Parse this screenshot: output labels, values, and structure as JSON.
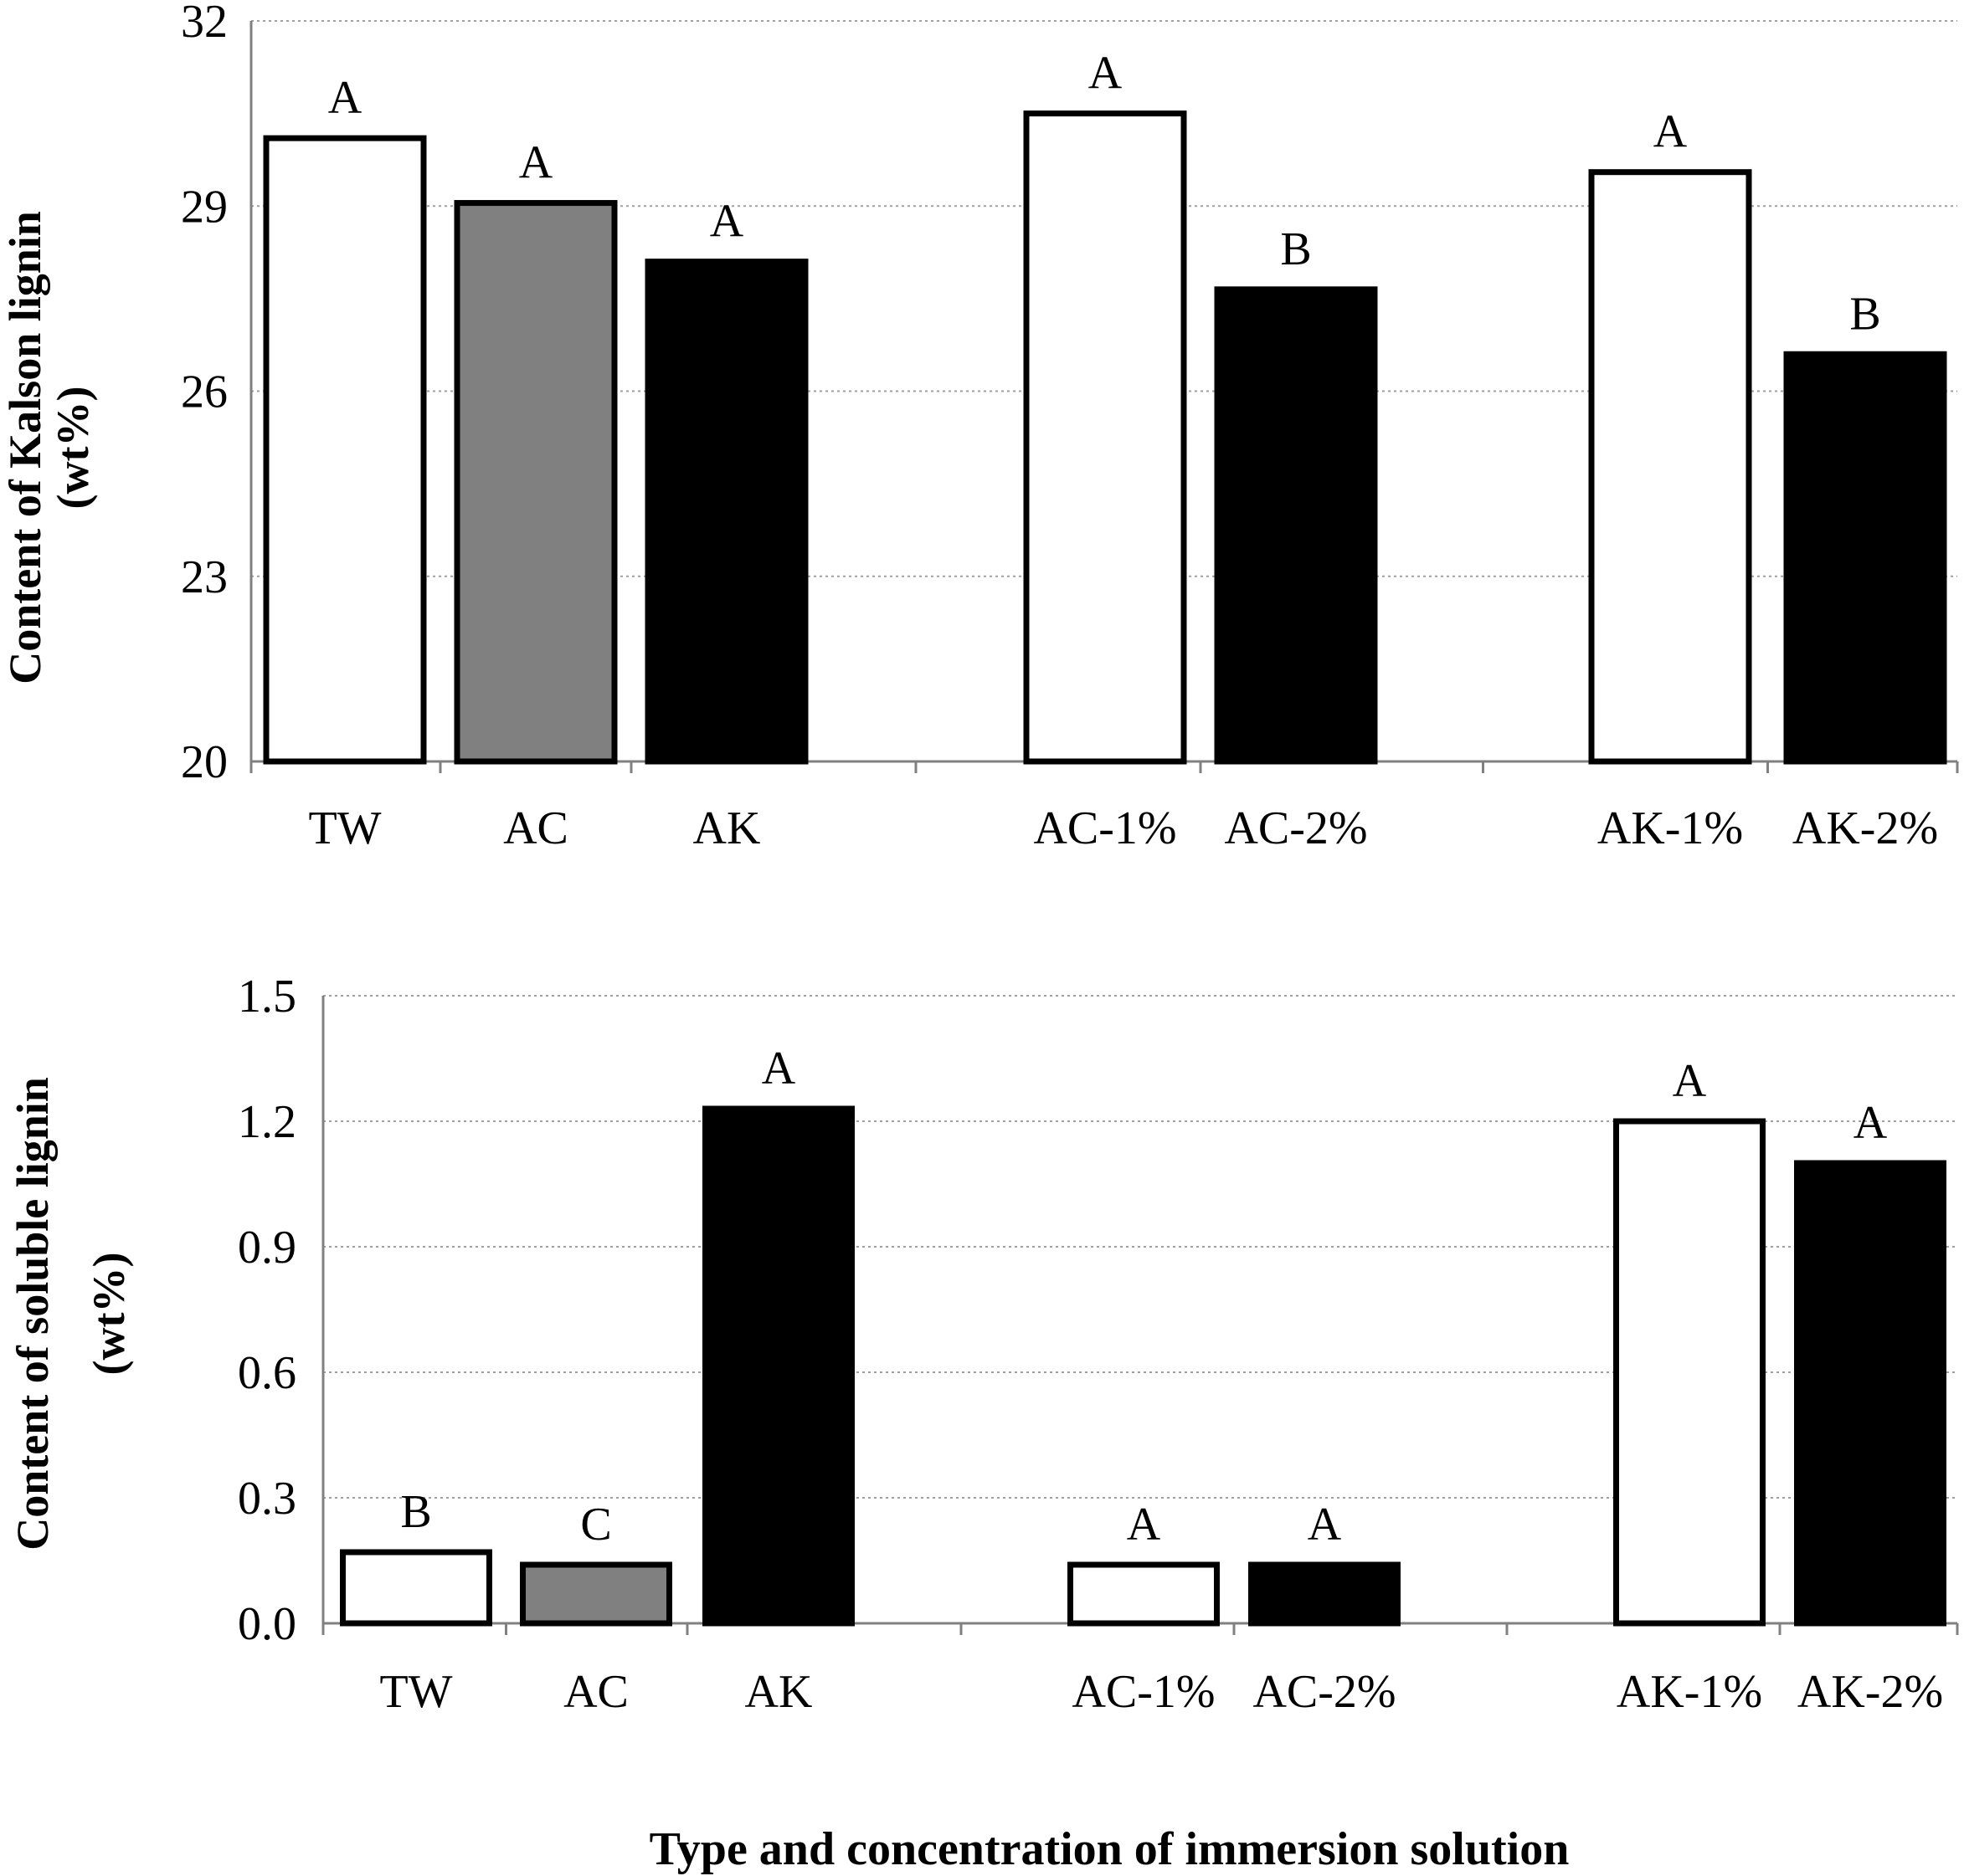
{
  "chart_data": [
    {
      "type": "bar",
      "title": "",
      "ylabel_lines": [
        "Content of Kalson lignin",
        "(wt%)"
      ],
      "ylim": [
        20,
        32
      ],
      "yticks": [
        "20",
        "23",
        "26",
        "29",
        "32"
      ],
      "grid": true,
      "categories": [
        "TW",
        "AC",
        "AK",
        "AC-1%",
        "AC-2%",
        "AK-1%",
        "AK-2%"
      ],
      "values": [
        30.1,
        29.05,
        28.1,
        30.5,
        27.65,
        29.55,
        26.6
      ],
      "significance": [
        "A",
        "A",
        "A",
        "A",
        "B",
        "A",
        "B"
      ],
      "fills": [
        "#ffffff",
        "#808080",
        "#000000",
        "#ffffff",
        "#000000",
        "#ffffff",
        "#000000"
      ]
    },
    {
      "type": "bar",
      "title": "",
      "ylabel_lines": [
        "Content of soluble lignin",
        "(wt%)"
      ],
      "ylim": [
        0,
        1.5
      ],
      "yticks": [
        "0.0",
        "0.3",
        "0.6",
        "0.9",
        "1.2",
        "1.5"
      ],
      "grid": true,
      "categories": [
        "TW",
        "AC",
        "AK",
        "AC-1%",
        "AC-2%",
        "AK-1%",
        "AK-2%"
      ],
      "values": [
        0.17,
        0.14,
        1.23,
        0.14,
        0.14,
        1.2,
        1.1
      ],
      "significance": [
        "B",
        "C",
        "A",
        "A",
        "A",
        "A",
        "A"
      ],
      "fills": [
        "#ffffff",
        "#808080",
        "#000000",
        "#ffffff",
        "#000000",
        "#ffffff",
        "#000000"
      ]
    }
  ],
  "xlabel": "Type and concentration of immersion solution"
}
